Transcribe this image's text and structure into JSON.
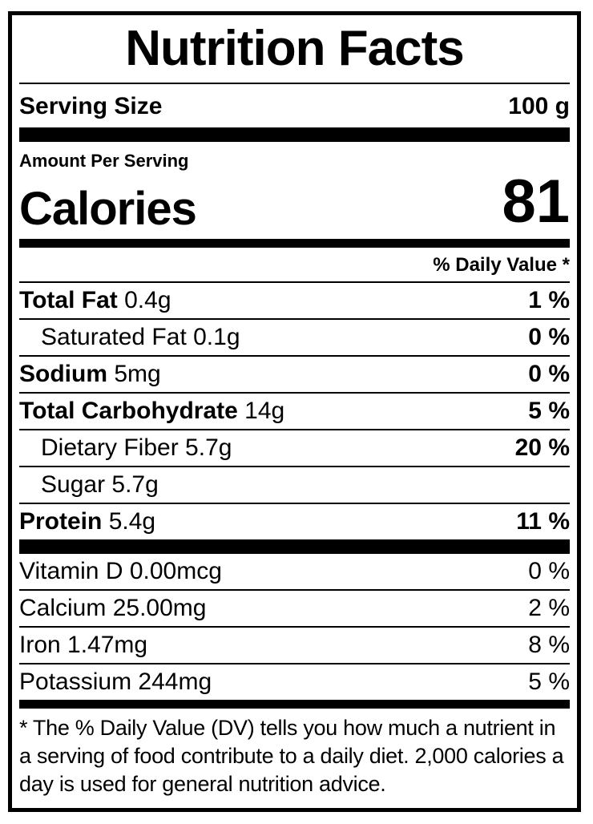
{
  "label": {
    "title": "Nutrition Facts",
    "serving_size": {
      "label": "Serving Size",
      "value": "100 g"
    },
    "amount_per_serving_label": "Amount Per Serving",
    "calories": {
      "label": "Calories",
      "value": "81"
    },
    "daily_value_header": "% Daily Value *",
    "nutrients": [
      {
        "name": "Total Fat",
        "amount": "0.4g",
        "dv": "1 %",
        "bold_name": true,
        "bold_dv": true,
        "indent": false
      },
      {
        "name": "Saturated Fat",
        "amount": "0.1g",
        "dv": "0 %",
        "bold_name": false,
        "bold_dv": true,
        "indent": true
      },
      {
        "name": "Sodium",
        "amount": "5mg",
        "dv": "0 %",
        "bold_name": true,
        "bold_dv": true,
        "indent": false
      },
      {
        "name": "Total Carbohydrate",
        "amount": "14g",
        "dv": "5 %",
        "bold_name": true,
        "bold_dv": true,
        "indent": false
      },
      {
        "name": "Dietary Fiber",
        "amount": "5.7g",
        "dv": "20 %",
        "bold_name": false,
        "bold_dv": true,
        "indent": true
      },
      {
        "name": "Sugar",
        "amount": "5.7g",
        "dv": "",
        "bold_name": false,
        "bold_dv": false,
        "indent": true
      },
      {
        "name": "Protein",
        "amount": "5.4g",
        "dv": "11 %",
        "bold_name": true,
        "bold_dv": true,
        "indent": false
      }
    ],
    "micronutrients": [
      {
        "name": "Vitamin D",
        "amount": "0.00mcg",
        "dv": "0 %"
      },
      {
        "name": "Calcium",
        "amount": "25.00mg",
        "dv": "2 %"
      },
      {
        "name": "Iron",
        "amount": "1.47mg",
        "dv": "8 %"
      },
      {
        "name": "Potassium",
        "amount": "244mg",
        "dv": "5 %"
      }
    ],
    "footnote": "* The % Daily Value (DV) tells you how much a nutrient in a serving of food contribute to a daily diet. 2,000 calories a day is used for general nutrition advice.",
    "colors": {
      "text": "#000000",
      "background": "#ffffff"
    }
  }
}
